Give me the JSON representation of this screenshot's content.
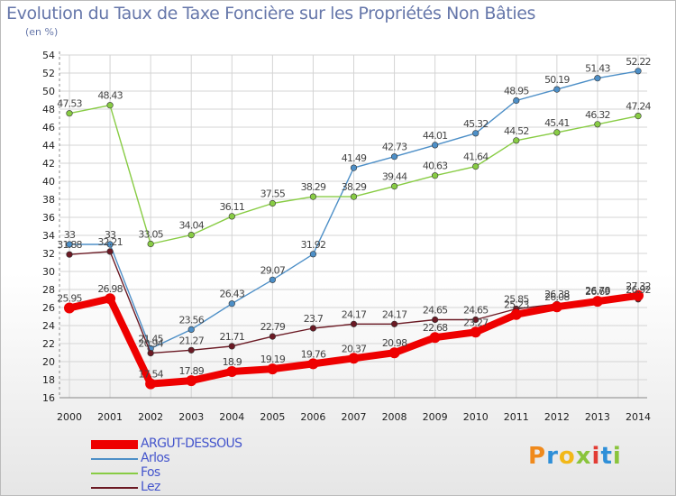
{
  "title": "Evolution du Taux de Taxe Foncière sur les Propriétés Non Bâties",
  "subtitle": "(en %)",
  "logo": {
    "text": "Proxiti",
    "colors": [
      "#f08a1c",
      "#2e8fd8",
      "#f2b818",
      "#8ac43c",
      "#e23c34",
      "#2e8fd8",
      "#8ac43c"
    ]
  },
  "chart_data": {
    "type": "line",
    "title": "Evolution du Taux de Taxe Foncière sur les Propriétés Non Bâties",
    "ylabel": "(en %)",
    "xlabel": "",
    "x": [
      "2000",
      "2001",
      "2002",
      "2003",
      "2004",
      "2005",
      "2006",
      "2007",
      "2008",
      "2009",
      "2010",
      "2011",
      "2012",
      "2013",
      "2014"
    ],
    "ylim": [
      16,
      54
    ],
    "yticks": [
      16,
      18,
      20,
      22,
      24,
      26,
      28,
      30,
      32,
      34,
      36,
      38,
      40,
      42,
      44,
      46,
      48,
      50,
      52,
      54
    ],
    "grid": true,
    "legend_position": "bottom-left",
    "series": [
      {
        "name": "ARGUT-DESSOUS",
        "color": "#ee0000",
        "values": [
          25.95,
          26.98,
          17.54,
          17.89,
          18.9,
          19.19,
          19.76,
          20.37,
          20.98,
          22.68,
          23.27,
          25.23,
          26.08,
          26.69,
          27.32
        ],
        "labels": [
          "25.95",
          "26.98",
          "17.54",
          "17.89",
          "18.9",
          "19.19",
          "19.76",
          "20.37",
          "20.98",
          "22.68",
          "23.27",
          "25.23",
          "26.08",
          "26.69",
          "27.32"
        ]
      },
      {
        "name": "Arlos",
        "color": "#4d8fc7",
        "values": [
          33,
          33,
          21.45,
          23.56,
          26.43,
          29.07,
          31.92,
          41.49,
          42.73,
          44.01,
          45.32,
          48.95,
          50.19,
          51.43,
          52.22
        ],
        "labels": [
          "33",
          "33",
          "21.45",
          "23.56",
          "26.43",
          "29.07",
          "31.92",
          "41.49",
          "42.73",
          "44.01",
          "45.32",
          "48.95",
          "50.19",
          "51.43",
          "52.22"
        ]
      },
      {
        "name": "Fos",
        "color": "#88cc44",
        "values": [
          47.53,
          48.43,
          33.05,
          34.04,
          36.11,
          37.55,
          38.29,
          38.29,
          39.44,
          40.63,
          41.64,
          44.52,
          45.41,
          46.32,
          47.24
        ],
        "labels": [
          "47.53",
          "48.43",
          "33.05",
          "34.04",
          "36.11",
          "37.55",
          "38.29",
          "38.29",
          "39.44",
          "40.63",
          "41.64",
          "44.52",
          "45.41",
          "46.32",
          "47.24"
        ]
      },
      {
        "name": "Lez",
        "color": "#6b1a24",
        "values": [
          31.88,
          32.21,
          20.94,
          21.27,
          21.71,
          22.79,
          23.7,
          24.17,
          24.17,
          24.65,
          24.65,
          25.85,
          26.38,
          26.78,
          26.92
        ],
        "labels": [
          "31.88",
          "32.21",
          "20.94",
          "21.27",
          "21.71",
          "22.79",
          "23.7",
          "24.17",
          "24.17",
          "24.65",
          "24.65",
          "25.85",
          "26.38",
          "26.78",
          "26.92"
        ]
      }
    ]
  }
}
